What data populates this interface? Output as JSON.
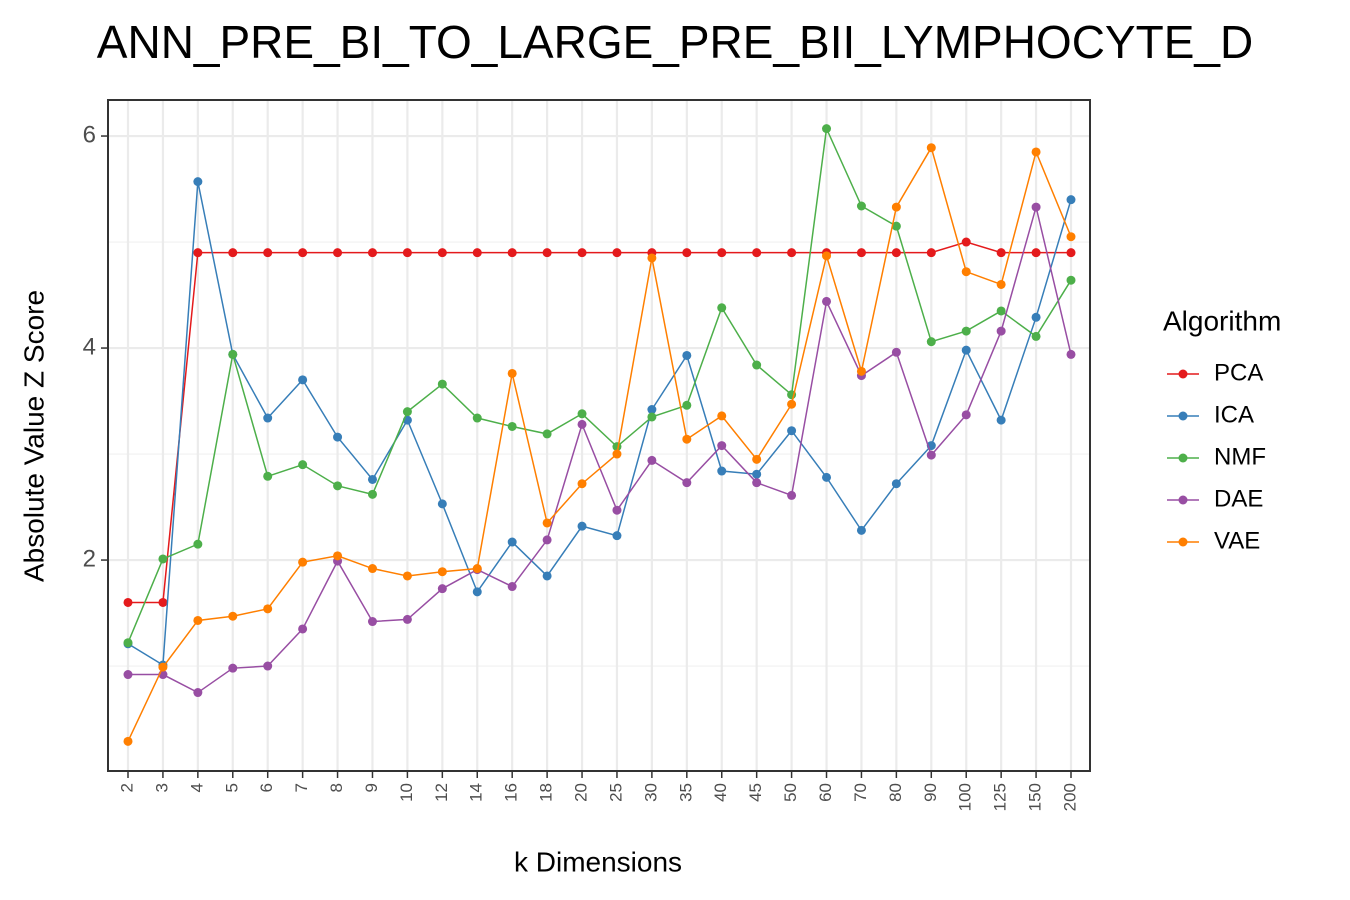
{
  "chart_data": {
    "type": "line",
    "title": "ANN_PRE_BI_TO_LARGE_PRE_BII_LYMPHOCYTE_D",
    "x_label": "k Dimensions",
    "y_label": "Absolute Value Z Score",
    "legend_title": "Algorithm",
    "legend_position": "right",
    "grid": true,
    "categories": [
      "2",
      "3",
      "4",
      "5",
      "6",
      "7",
      "8",
      "9",
      "10",
      "12",
      "14",
      "16",
      "18",
      "20",
      "25",
      "30",
      "35",
      "40",
      "45",
      "50",
      "60",
      "70",
      "80",
      "90",
      "100",
      "125",
      "150",
      "200"
    ],
    "ylim": [
      0.01,
      6.34
    ],
    "yticks": [
      2,
      4,
      6
    ],
    "y_minor_grid": [
      1,
      3,
      5
    ],
    "series": [
      {
        "name": "PCA",
        "color": "#e41a1c",
        "values": [
          1.6,
          1.6,
          4.9,
          4.9,
          4.9,
          4.9,
          4.9,
          4.9,
          4.9,
          4.9,
          4.9,
          4.9,
          4.9,
          4.9,
          4.9,
          4.9,
          4.9,
          4.9,
          4.9,
          4.9,
          4.9,
          4.9,
          4.9,
          4.9,
          5.0,
          4.9,
          4.9,
          4.9
        ]
      },
      {
        "name": "ICA",
        "color": "#377eb8",
        "values": [
          1.21,
          1.01,
          5.57,
          3.94,
          3.34,
          3.7,
          3.16,
          2.76,
          3.32,
          2.53,
          1.7,
          2.17,
          1.85,
          2.32,
          2.23,
          3.42,
          3.93,
          2.84,
          2.81,
          3.22,
          2.78,
          2.28,
          2.72,
          3.08,
          3.98,
          3.32,
          4.29,
          5.4
        ]
      },
      {
        "name": "NMF",
        "color": "#4daf4a",
        "values": [
          1.22,
          2.01,
          2.15,
          3.94,
          2.79,
          2.9,
          2.7,
          2.62,
          3.4,
          3.66,
          3.34,
          3.26,
          3.19,
          3.38,
          3.07,
          3.35,
          3.46,
          4.38,
          3.84,
          3.56,
          6.07,
          5.34,
          5.15,
          4.06,
          4.16,
          4.35,
          4.11,
          4.64
        ]
      },
      {
        "name": "DAE",
        "color": "#984ea3",
        "values": [
          0.92,
          0.92,
          0.75,
          0.98,
          1.0,
          1.35,
          1.99,
          1.42,
          1.44,
          1.73,
          1.91,
          1.75,
          2.19,
          3.28,
          2.47,
          2.94,
          2.73,
          3.08,
          2.73,
          2.61,
          4.44,
          3.74,
          3.96,
          2.99,
          3.37,
          4.16,
          5.33,
          3.94
        ]
      },
      {
        "name": "VAE",
        "color": "#ff7f00",
        "values": [
          0.29,
          0.99,
          1.43,
          1.47,
          1.54,
          1.98,
          2.04,
          1.92,
          1.85,
          1.89,
          1.92,
          3.76,
          2.35,
          2.72,
          3.0,
          4.85,
          3.14,
          3.36,
          2.95,
          3.47,
          4.87,
          3.78,
          5.33,
          5.89,
          4.72,
          4.6,
          5.85,
          5.05
        ]
      }
    ]
  }
}
